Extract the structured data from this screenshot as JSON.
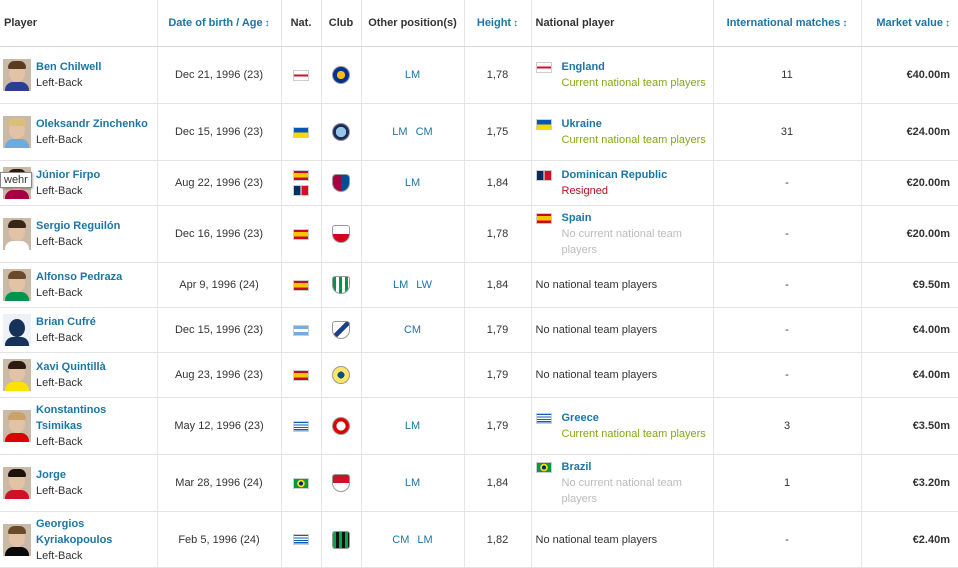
{
  "headers": {
    "player": "Player",
    "dob": "Date of birth / Age",
    "nat": "Nat.",
    "club": "Club",
    "other_pos": "Other position(s)",
    "height": "Height",
    "national": "National player",
    "intl": "International matches",
    "market": "Market value",
    "sort_arrow": "↕"
  },
  "tooltip": "wehr",
  "rows": [
    {
      "name": "Ben Chilwell",
      "pos": "Left-Back",
      "dob": "Dec 21, 1996 (23)",
      "nat": [
        "england"
      ],
      "club": "leicester",
      "other": [
        "LM"
      ],
      "height": "1,78",
      "nt": {
        "country": "England",
        "status": "Current national team players",
        "kind": "current",
        "flag": "england"
      },
      "intl": "11",
      "mv": "€40.00m"
    },
    {
      "name": "Oleksandr Zinchenko",
      "pos": "Left-Back",
      "dob": "Dec 15, 1996 (23)",
      "nat": [
        "ukraine"
      ],
      "club": "mancity",
      "other": [
        "LM",
        "CM"
      ],
      "height": "1,75",
      "nt": {
        "country": "Ukraine",
        "status": "Current national team players",
        "kind": "current",
        "flag": "ukraine"
      },
      "intl": "31",
      "mv": "€24.00m"
    },
    {
      "name": "Júnior Firpo",
      "pos": "Left-Back",
      "dob": "Aug 22, 1996 (23)",
      "nat": [
        "spain",
        "dominican"
      ],
      "club": "barcelona",
      "other": [
        "LM"
      ],
      "height": "1,84",
      "nt": {
        "country": "Dominican Republic",
        "status": "Resigned",
        "kind": "resigned",
        "flag": "dominican"
      },
      "intl": "-",
      "mv": "€20.00m"
    },
    {
      "name": "Sergio Reguilón",
      "pos": "Left-Back",
      "dob": "Dec 16, 1996 (23)",
      "nat": [
        "spain"
      ],
      "club": "sevilla",
      "other": [],
      "height": "1,78",
      "nt": {
        "country": "Spain",
        "status": "No current national team players",
        "kind": "none",
        "flag": "spain"
      },
      "intl": "-",
      "mv": "€20.00m"
    },
    {
      "name": "Alfonso Pedraza",
      "pos": "Left-Back",
      "dob": "Apr 9, 1996 (24)",
      "nat": [
        "spain"
      ],
      "club": "betis",
      "other": [
        "LM",
        "LW"
      ],
      "height": "1,84",
      "nt": {
        "text": "No national team players"
      },
      "intl": "-",
      "mv": "€9.50m"
    },
    {
      "name": "Brian Cufré",
      "pos": "Left-Back",
      "dob": "Dec 15, 1996 (23)",
      "nat": [
        "argentina"
      ],
      "club": "velez",
      "other": [
        "CM"
      ],
      "height": "1,79",
      "nt": {
        "text": "No national team players"
      },
      "intl": "-",
      "mv": "€4.00m"
    },
    {
      "name": "Xavi Quintillà",
      "pos": "Left-Back",
      "dob": "Aug 23, 1996 (23)",
      "nat": [
        "spain"
      ],
      "club": "villarreal",
      "other": [],
      "height": "1,79",
      "nt": {
        "text": "No national team players"
      },
      "intl": "-",
      "mv": "€4.00m"
    },
    {
      "name": "Konstantinos Tsimikas",
      "pos": "Left-Back",
      "dob": "May 12, 1996 (23)",
      "nat": [
        "greece"
      ],
      "club": "olympiacos",
      "other": [
        "LM"
      ],
      "height": "1,79",
      "nt": {
        "country": "Greece",
        "status": "Current national team players",
        "kind": "current",
        "flag": "greece"
      },
      "intl": "3",
      "mv": "€3.50m"
    },
    {
      "name": "Jorge",
      "pos": "Left-Back",
      "dob": "Mar 28, 1996 (24)",
      "nat": [
        "brazil"
      ],
      "club": "monaco",
      "other": [
        "LM"
      ],
      "height": "1,84",
      "nt": {
        "country": "Brazil",
        "status": "No current national team players",
        "kind": "none",
        "flag": "brazil"
      },
      "intl": "1",
      "mv": "€3.20m"
    },
    {
      "name": "Georgios Kyriakopoulos",
      "pos": "Left-Back",
      "dob": "Feb 5, 1996 (24)",
      "nat": [
        "greece"
      ],
      "club": "sassuolo",
      "other": [
        "CM",
        "LM"
      ],
      "height": "1,82",
      "nt": {
        "text": "No national team players"
      },
      "intl": "-",
      "mv": "€2.40m"
    }
  ]
}
